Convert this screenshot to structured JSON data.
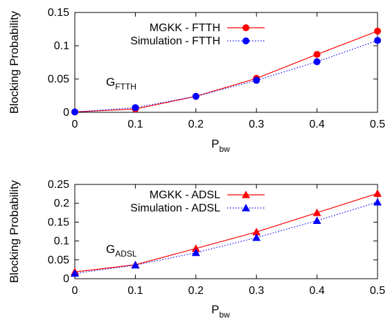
{
  "chart_data": [
    {
      "type": "line",
      "xlabel": "P",
      "xlabel_sub": "bw",
      "ylabel": "Blocking Probability",
      "xlim": [
        0,
        0.5
      ],
      "ylim": [
        0,
        0.15
      ],
      "xticks": [
        0,
        0.1,
        0.2,
        0.3,
        0.4,
        0.5
      ],
      "xtick_labels": [
        "0",
        "0.1",
        "0.2",
        "0.3",
        "0.4",
        "0.5"
      ],
      "yticks": [
        0,
        0.05,
        0.1,
        0.15
      ],
      "ytick_labels": [
        "0",
        "0.05",
        "0.1",
        "0.15"
      ],
      "grid": false,
      "legend_position": "top-right",
      "annotation": {
        "text": "G",
        "sub": "FTTH"
      },
      "x": [
        0,
        0.1,
        0.2,
        0.3,
        0.4,
        0.5
      ],
      "series": [
        {
          "name": "MGKK - FTTH",
          "color": "#ff0000",
          "marker": "circle",
          "line": "solid",
          "values": [
            0.0005,
            0.005,
            0.024,
            0.051,
            0.087,
            0.122
          ]
        },
        {
          "name": "Simulation - FTTH",
          "color": "#0000ff",
          "marker": "circle",
          "line": "dotted",
          "values": [
            0.0005,
            0.007,
            0.024,
            0.048,
            0.076,
            0.108
          ]
        }
      ]
    },
    {
      "type": "line",
      "xlabel": "P",
      "xlabel_sub": "bw",
      "ylabel": "Blocking Probability",
      "xlim": [
        0,
        0.5
      ],
      "ylim": [
        0,
        0.25
      ],
      "xticks": [
        0,
        0.1,
        0.2,
        0.3,
        0.4,
        0.5
      ],
      "xtick_labels": [
        "0",
        "0.1",
        "0.2",
        "0.3",
        "0.4",
        "0.5"
      ],
      "yticks": [
        0,
        0.05,
        0.1,
        0.15,
        0.2,
        0.25
      ],
      "ytick_labels": [
        "0",
        "0.05",
        "0.1",
        "0.15",
        "0.2",
        "0.25"
      ],
      "grid": false,
      "legend_position": "top-right",
      "annotation": {
        "text": "G",
        "sub": "ADSL"
      },
      "x": [
        0,
        0.1,
        0.2,
        0.3,
        0.4,
        0.5
      ],
      "series": [
        {
          "name": "MGKK - ADSL",
          "color": "#ff0000",
          "marker": "triangle",
          "line": "solid",
          "values": [
            0.018,
            0.037,
            0.08,
            0.124,
            0.175,
            0.226
          ]
        },
        {
          "name": "Simulation - ADSL",
          "color": "#0000ff",
          "marker": "triangle",
          "line": "dotted",
          "values": [
            0.014,
            0.036,
            0.069,
            0.109,
            0.154,
            0.203
          ]
        }
      ]
    }
  ]
}
